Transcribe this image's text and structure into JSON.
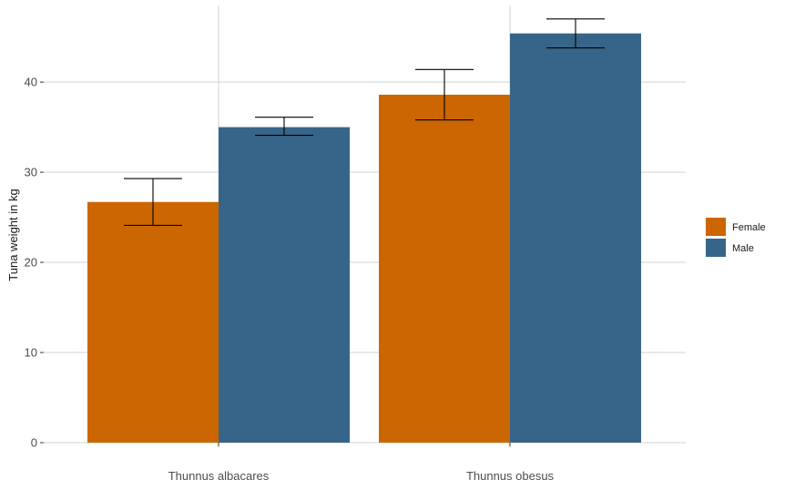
{
  "chart_data": {
    "type": "bar",
    "title": "",
    "xlabel": "",
    "ylabel": "Tuna weight in kg",
    "categories": [
      "Thunnus albacares",
      "Thunnus obesus"
    ],
    "series": [
      {
        "name": "Female",
        "color": "#CC6600",
        "values": [
          26.7,
          38.6
        ],
        "error_low": [
          24.1,
          35.8
        ],
        "error_high": [
          29.3,
          41.4
        ]
      },
      {
        "name": "Male",
        "color": "#376589",
        "values": [
          35.0,
          45.4
        ],
        "error_low": [
          34.1,
          43.8
        ],
        "error_high": [
          36.1,
          47.0
        ]
      }
    ],
    "ylim": [
      0,
      48.5
    ],
    "yticks": [
      0,
      10,
      20,
      30,
      40
    ],
    "grid": true,
    "legend_position": "right"
  }
}
